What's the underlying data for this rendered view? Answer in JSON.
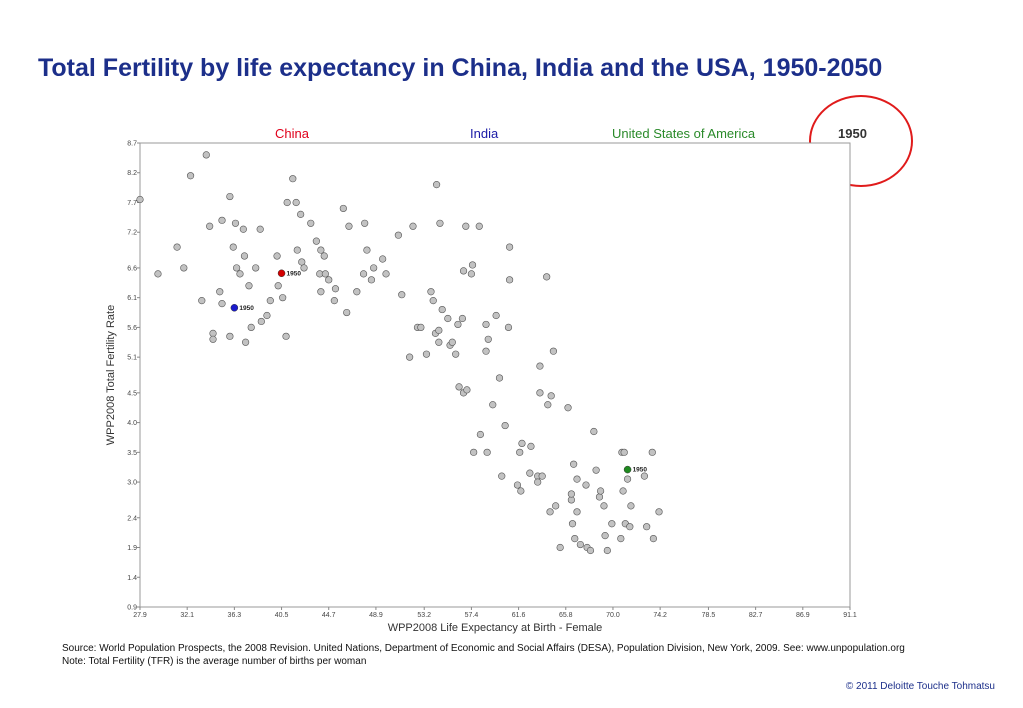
{
  "title": "Total Fertility by life expectancy in China, India and the USA, 1950-2050",
  "chart_data": {
    "type": "scatter",
    "xlabel": "WPP2008 Life Expectancy at Birth - Female",
    "ylabel": "WPP2008 Total Fertility Rate",
    "xlim": [
      27.9,
      91.1
    ],
    "ylim": [
      0.9,
      8.7
    ],
    "x_ticks": [
      "27.9",
      "32.1",
      "36.3",
      "40.5",
      "44.7",
      "48.9",
      "53.2",
      "57.4",
      "61.6",
      "65.8",
      "70.0",
      "74.2",
      "78.5",
      "82.7",
      "86.9",
      "91.1"
    ],
    "y_ticks": [
      "0.9",
      "1.4",
      "1.9",
      "2.4",
      "3.0",
      "3.5",
      "4.0",
      "4.5",
      "5.1",
      "5.6",
      "6.1",
      "6.6",
      "7.2",
      "7.7",
      "8.2",
      "8.7"
    ],
    "grid": false,
    "legend": [
      {
        "label": "China",
        "color": "#e0001b"
      },
      {
        "label": "India",
        "color": "#1a1aa6"
      },
      {
        "label": "United States of America",
        "color": "#2a8a2a"
      }
    ],
    "year_label": "1950",
    "highlighted_points": [
      {
        "name": "China",
        "x": 40.5,
        "y": 6.51,
        "label": "1950",
        "color": "#d40000"
      },
      {
        "name": "India",
        "x": 36.3,
        "y": 5.93,
        "label": "1950",
        "color": "#1a1acc"
      },
      {
        "name": "United States of America",
        "x": 71.3,
        "y": 3.21,
        "label": "1950",
        "color": "#1f8a1f"
      }
    ],
    "points": [
      [
        27.9,
        7.75
      ],
      [
        29.5,
        6.5
      ],
      [
        31.2,
        6.95
      ],
      [
        31.8,
        6.6
      ],
      [
        32.4,
        8.15
      ],
      [
        33.8,
        8.5
      ],
      [
        33.4,
        6.05
      ],
      [
        34.1,
        7.3
      ],
      [
        35.2,
        7.4
      ],
      [
        35.9,
        7.8
      ],
      [
        36.4,
        7.35
      ],
      [
        37.1,
        7.25
      ],
      [
        38.6,
        7.25
      ],
      [
        36.2,
        6.95
      ],
      [
        36.5,
        6.6
      ],
      [
        37.2,
        6.8
      ],
      [
        36.8,
        6.5
      ],
      [
        37.6,
        6.3
      ],
      [
        38.2,
        6.6
      ],
      [
        35.0,
        6.2
      ],
      [
        35.2,
        6.0
      ],
      [
        34.4,
        5.5
      ],
      [
        34.4,
        5.4
      ],
      [
        35.9,
        5.45
      ],
      [
        37.3,
        5.35
      ],
      [
        37.8,
        5.6
      ],
      [
        38.7,
        5.7
      ],
      [
        39.2,
        5.8
      ],
      [
        39.5,
        6.05
      ],
      [
        40.2,
        6.3
      ],
      [
        40.9,
        5.45
      ],
      [
        40.1,
        6.8
      ],
      [
        40.6,
        6.1
      ],
      [
        41.0,
        7.7
      ],
      [
        41.5,
        8.1
      ],
      [
        41.8,
        7.7
      ],
      [
        42.2,
        7.5
      ],
      [
        41.9,
        6.9
      ],
      [
        42.3,
        6.7
      ],
      [
        42.5,
        6.6
      ],
      [
        43.1,
        7.35
      ],
      [
        43.6,
        7.05
      ],
      [
        44.0,
        6.9
      ],
      [
        43.9,
        6.5
      ],
      [
        44.4,
        6.5
      ],
      [
        44.0,
        6.2
      ],
      [
        44.3,
        6.8
      ],
      [
        44.7,
        6.4
      ],
      [
        45.3,
        6.25
      ],
      [
        45.2,
        6.05
      ],
      [
        46.0,
        7.6
      ],
      [
        46.5,
        7.3
      ],
      [
        46.3,
        5.85
      ],
      [
        47.2,
        6.2
      ],
      [
        47.9,
        7.35
      ],
      [
        48.1,
        6.9
      ],
      [
        47.8,
        6.5
      ],
      [
        48.5,
        6.4
      ],
      [
        48.7,
        6.6
      ],
      [
        49.5,
        6.75
      ],
      [
        49.8,
        6.5
      ],
      [
        50.9,
        7.15
      ],
      [
        51.2,
        6.15
      ],
      [
        52.2,
        7.3
      ],
      [
        51.9,
        5.1
      ],
      [
        52.6,
        5.6
      ],
      [
        52.9,
        5.6
      ],
      [
        53.4,
        5.15
      ],
      [
        53.8,
        6.2
      ],
      [
        54.0,
        6.05
      ],
      [
        54.2,
        5.5
      ],
      [
        54.5,
        5.55
      ],
      [
        54.5,
        5.35
      ],
      [
        54.3,
        8.0
      ],
      [
        54.6,
        7.35
      ],
      [
        54.8,
        5.9
      ],
      [
        55.3,
        5.75
      ],
      [
        55.5,
        5.3
      ],
      [
        55.7,
        5.35
      ],
      [
        56.0,
        5.15
      ],
      [
        56.2,
        5.65
      ],
      [
        56.6,
        5.75
      ],
      [
        56.3,
        4.6
      ],
      [
        56.7,
        4.5
      ],
      [
        57.0,
        4.55
      ],
      [
        56.7,
        6.55
      ],
      [
        57.4,
        6.5
      ],
      [
        57.5,
        6.65
      ],
      [
        58.1,
        7.3
      ],
      [
        56.9,
        7.3
      ],
      [
        57.6,
        3.5
      ],
      [
        58.2,
        3.8
      ],
      [
        58.8,
        3.5
      ],
      [
        58.7,
        5.65
      ],
      [
        58.9,
        5.4
      ],
      [
        58.7,
        5.2
      ],
      [
        59.6,
        5.8
      ],
      [
        59.3,
        4.3
      ],
      [
        59.9,
        4.75
      ],
      [
        60.1,
        3.1
      ],
      [
        60.4,
        3.95
      ],
      [
        60.7,
        5.6
      ],
      [
        60.8,
        6.4
      ],
      [
        60.8,
        6.95
      ],
      [
        61.7,
        3.5
      ],
      [
        61.9,
        3.65
      ],
      [
        61.5,
        2.95
      ],
      [
        61.8,
        2.85
      ],
      [
        62.7,
        3.6
      ],
      [
        62.6,
        3.15
      ],
      [
        63.3,
        3.1
      ],
      [
        63.5,
        4.95
      ],
      [
        63.7,
        3.1
      ],
      [
        63.5,
        4.5
      ],
      [
        63.3,
        3.0
      ],
      [
        64.1,
        6.45
      ],
      [
        64.2,
        4.3
      ],
      [
        64.7,
        5.2
      ],
      [
        64.4,
        2.5
      ],
      [
        64.5,
        4.45
      ],
      [
        64.9,
        2.6
      ],
      [
        65.3,
        1.9
      ],
      [
        66.0,
        4.25
      ],
      [
        66.3,
        2.7
      ],
      [
        66.3,
        2.8
      ],
      [
        66.5,
        3.3
      ],
      [
        66.8,
        3.05
      ],
      [
        66.8,
        2.5
      ],
      [
        66.4,
        2.3
      ],
      [
        66.6,
        2.05
      ],
      [
        67.1,
        1.95
      ],
      [
        67.6,
        2.95
      ],
      [
        67.7,
        1.9
      ],
      [
        68.0,
        1.85
      ],
      [
        68.3,
        3.85
      ],
      [
        68.8,
        2.75
      ],
      [
        68.5,
        3.2
      ],
      [
        68.9,
        2.85
      ],
      [
        69.2,
        2.6
      ],
      [
        69.5,
        1.85
      ],
      [
        69.3,
        2.1
      ],
      [
        69.9,
        2.3
      ],
      [
        70.8,
        3.5
      ],
      [
        71.0,
        3.5
      ],
      [
        71.3,
        3.05
      ],
      [
        71.1,
        2.3
      ],
      [
        71.6,
        2.6
      ],
      [
        72.8,
        3.1
      ],
      [
        73.0,
        2.25
      ],
      [
        73.5,
        3.5
      ],
      [
        73.6,
        2.05
      ],
      [
        74.1,
        2.5
      ],
      [
        70.7,
        2.05
      ],
      [
        70.9,
        2.85
      ],
      [
        71.5,
        2.25
      ]
    ]
  },
  "footnotes": {
    "source": "Source: World Population Prospects, the 2008 Revision. United Nations, Department of Economic and Social Affairs (DESA), Population Division, New York, 2009. See: www.unpopulation.org",
    "note": "Note: Total Fertility (TFR) is the average number of births per woman"
  },
  "copyright": "© 2011 Deloitte Touche Tohmatsu"
}
